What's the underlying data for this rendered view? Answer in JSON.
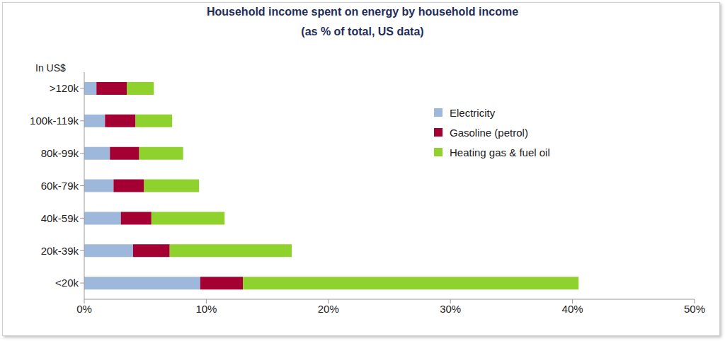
{
  "chart_data": {
    "type": "bar",
    "orientation": "horizontal",
    "stacked": true,
    "grid": false,
    "legend": "upper right",
    "title": "Household income spent on energy by household income",
    "subtitle": "(as % of total, US data)",
    "y_label": "In US$",
    "categories": [
      ">120k",
      "100k-119k",
      "80k-99k",
      "60k-79k",
      "40k-59k",
      "20k-39k",
      "<20k"
    ],
    "series": [
      {
        "name": "Electricity",
        "color": "#9db8da",
        "values": [
          1.0,
          1.7,
          2.1,
          2.4,
          3.0,
          4.0,
          9.5
        ]
      },
      {
        "name": "Gasoline (petrol)",
        "color": "#a50034",
        "values": [
          2.5,
          2.5,
          2.4,
          2.5,
          2.5,
          3.0,
          3.5
        ]
      },
      {
        "name": "Heating gas & fuel oil",
        "color": "#8fd22d",
        "values": [
          2.2,
          3.0,
          3.6,
          4.5,
          6.0,
          10.0,
          27.5
        ]
      }
    ],
    "xlim": [
      0,
      50
    ],
    "xticks": [
      {
        "value": 0,
        "label": "0%"
      },
      {
        "value": 10,
        "label": "10%"
      },
      {
        "value": 20,
        "label": "20%"
      },
      {
        "value": 30,
        "label": "30%"
      },
      {
        "value": 40,
        "label": "40%"
      },
      {
        "value": 50,
        "label": "50%"
      }
    ]
  }
}
